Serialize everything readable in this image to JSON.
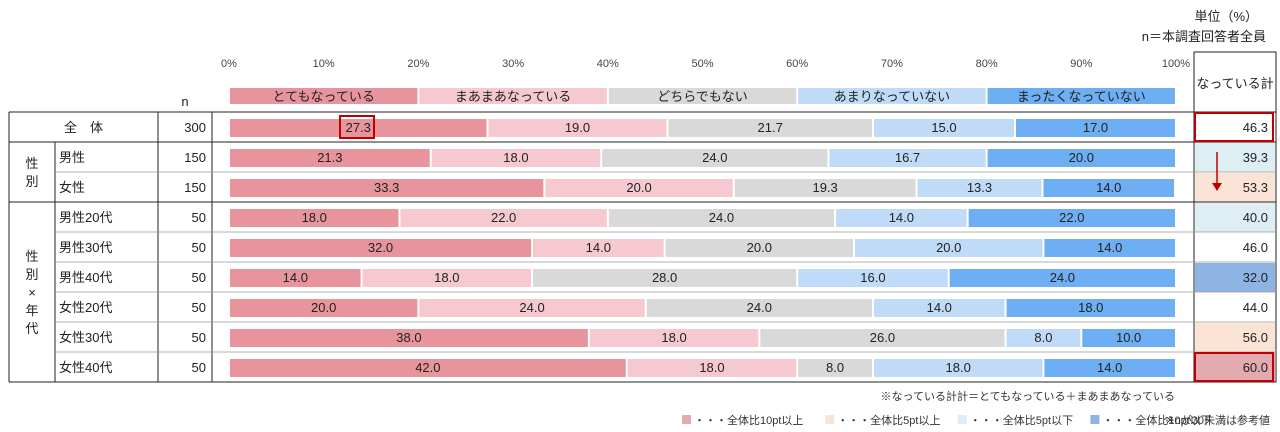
{
  "header": {
    "unit": "単位（%）",
    "n_note": "n＝本調査回答者全員"
  },
  "chart_data": {
    "type": "bar",
    "orientation": "horizontal-stacked-100",
    "x_ticks": [
      "0%",
      "10%",
      "20%",
      "30%",
      "40%",
      "50%",
      "60%",
      "70%",
      "80%",
      "90%",
      "100%"
    ],
    "xlim": [
      0,
      100
    ],
    "n_header": "n",
    "total_header": "なっている計",
    "series": [
      {
        "name": "とてもなっている",
        "color": "#e8949c"
      },
      {
        "name": "まあまあなっている",
        "color": "#f5c9cf"
      },
      {
        "name": "どちらでもない",
        "color": "#d9d9d9"
      },
      {
        "name": "あまりなっていない",
        "color": "#bfdbf7"
      },
      {
        "name": "まったくなっていない",
        "color": "#6eaef2"
      }
    ],
    "group_labels": [
      {
        "label": "性\n別",
        "rows": [
          1,
          2
        ]
      },
      {
        "label": "性\n別\n×\n年\n代",
        "rows": [
          3,
          4,
          5,
          6,
          7,
          8
        ]
      }
    ],
    "rows": [
      {
        "label": "全　体",
        "n": "300",
        "values": [
          "27.3",
          "19.0",
          "21.7",
          "15.0",
          "17.0"
        ],
        "total": "46.3",
        "highlight": "outline"
      },
      {
        "label": "男性",
        "n": "150",
        "values": [
          "21.3",
          "18.0",
          "24.0",
          "16.7",
          "20.0"
        ],
        "total": "39.3",
        "highlight": "lightblue"
      },
      {
        "label": "女性",
        "n": "150",
        "values": [
          "33.3",
          "20.0",
          "19.3",
          "13.3",
          "14.0"
        ],
        "total": "53.3",
        "highlight": "lightpink"
      },
      {
        "label": "男性20代",
        "n": "50",
        "values": [
          "18.0",
          "22.0",
          "24.0",
          "14.0",
          "22.0"
        ],
        "total": "40.0",
        "highlight": "lightblue"
      },
      {
        "label": "男性30代",
        "n": "50",
        "values": [
          "32.0",
          "14.0",
          "20.0",
          "20.0",
          "14.0"
        ],
        "total": "46.0",
        "highlight": "none"
      },
      {
        "label": "男性40代",
        "n": "50",
        "values": [
          "14.0",
          "18.0",
          "28.0",
          "16.0",
          "24.0"
        ],
        "total": "32.0",
        "highlight": "darkblue"
      },
      {
        "label": "女性20代",
        "n": "50",
        "values": [
          "20.0",
          "24.0",
          "24.0",
          "14.0",
          "18.0"
        ],
        "total": "44.0",
        "highlight": "none"
      },
      {
        "label": "女性30代",
        "n": "50",
        "values": [
          "38.0",
          "18.0",
          "26.0",
          "8.0",
          "10.0"
        ],
        "total": "56.0",
        "highlight": "lightpink"
      },
      {
        "label": "女性40代",
        "n": "50",
        "values": [
          "42.0",
          "18.0",
          "8.0",
          "18.0",
          "14.0"
        ],
        "total": "60.0",
        "highlight": "darkpink"
      }
    ]
  },
  "footer": {
    "note1": "※なっている計計＝とてもなっている＋まあまあなっている",
    "legend": [
      {
        "color": "#e3aaaf",
        "text": "・・・全体比10pt以上"
      },
      {
        "color": "#fbe3d6",
        "text": "・・・全体比5pt以上"
      },
      {
        "color": "#deeef5",
        "text": "・・・全体比5pt以下"
      },
      {
        "color": "#8eb4e3",
        "text": "・・・全体比10pt以下"
      }
    ],
    "note2": "※nが30未満は参考値"
  },
  "colors": {
    "lightblue": "#deeef5",
    "lightpink": "#fbe3d6",
    "darkblue": "#8eb4e3",
    "darkpink": "#e3aaaf",
    "red": "#c00000"
  }
}
